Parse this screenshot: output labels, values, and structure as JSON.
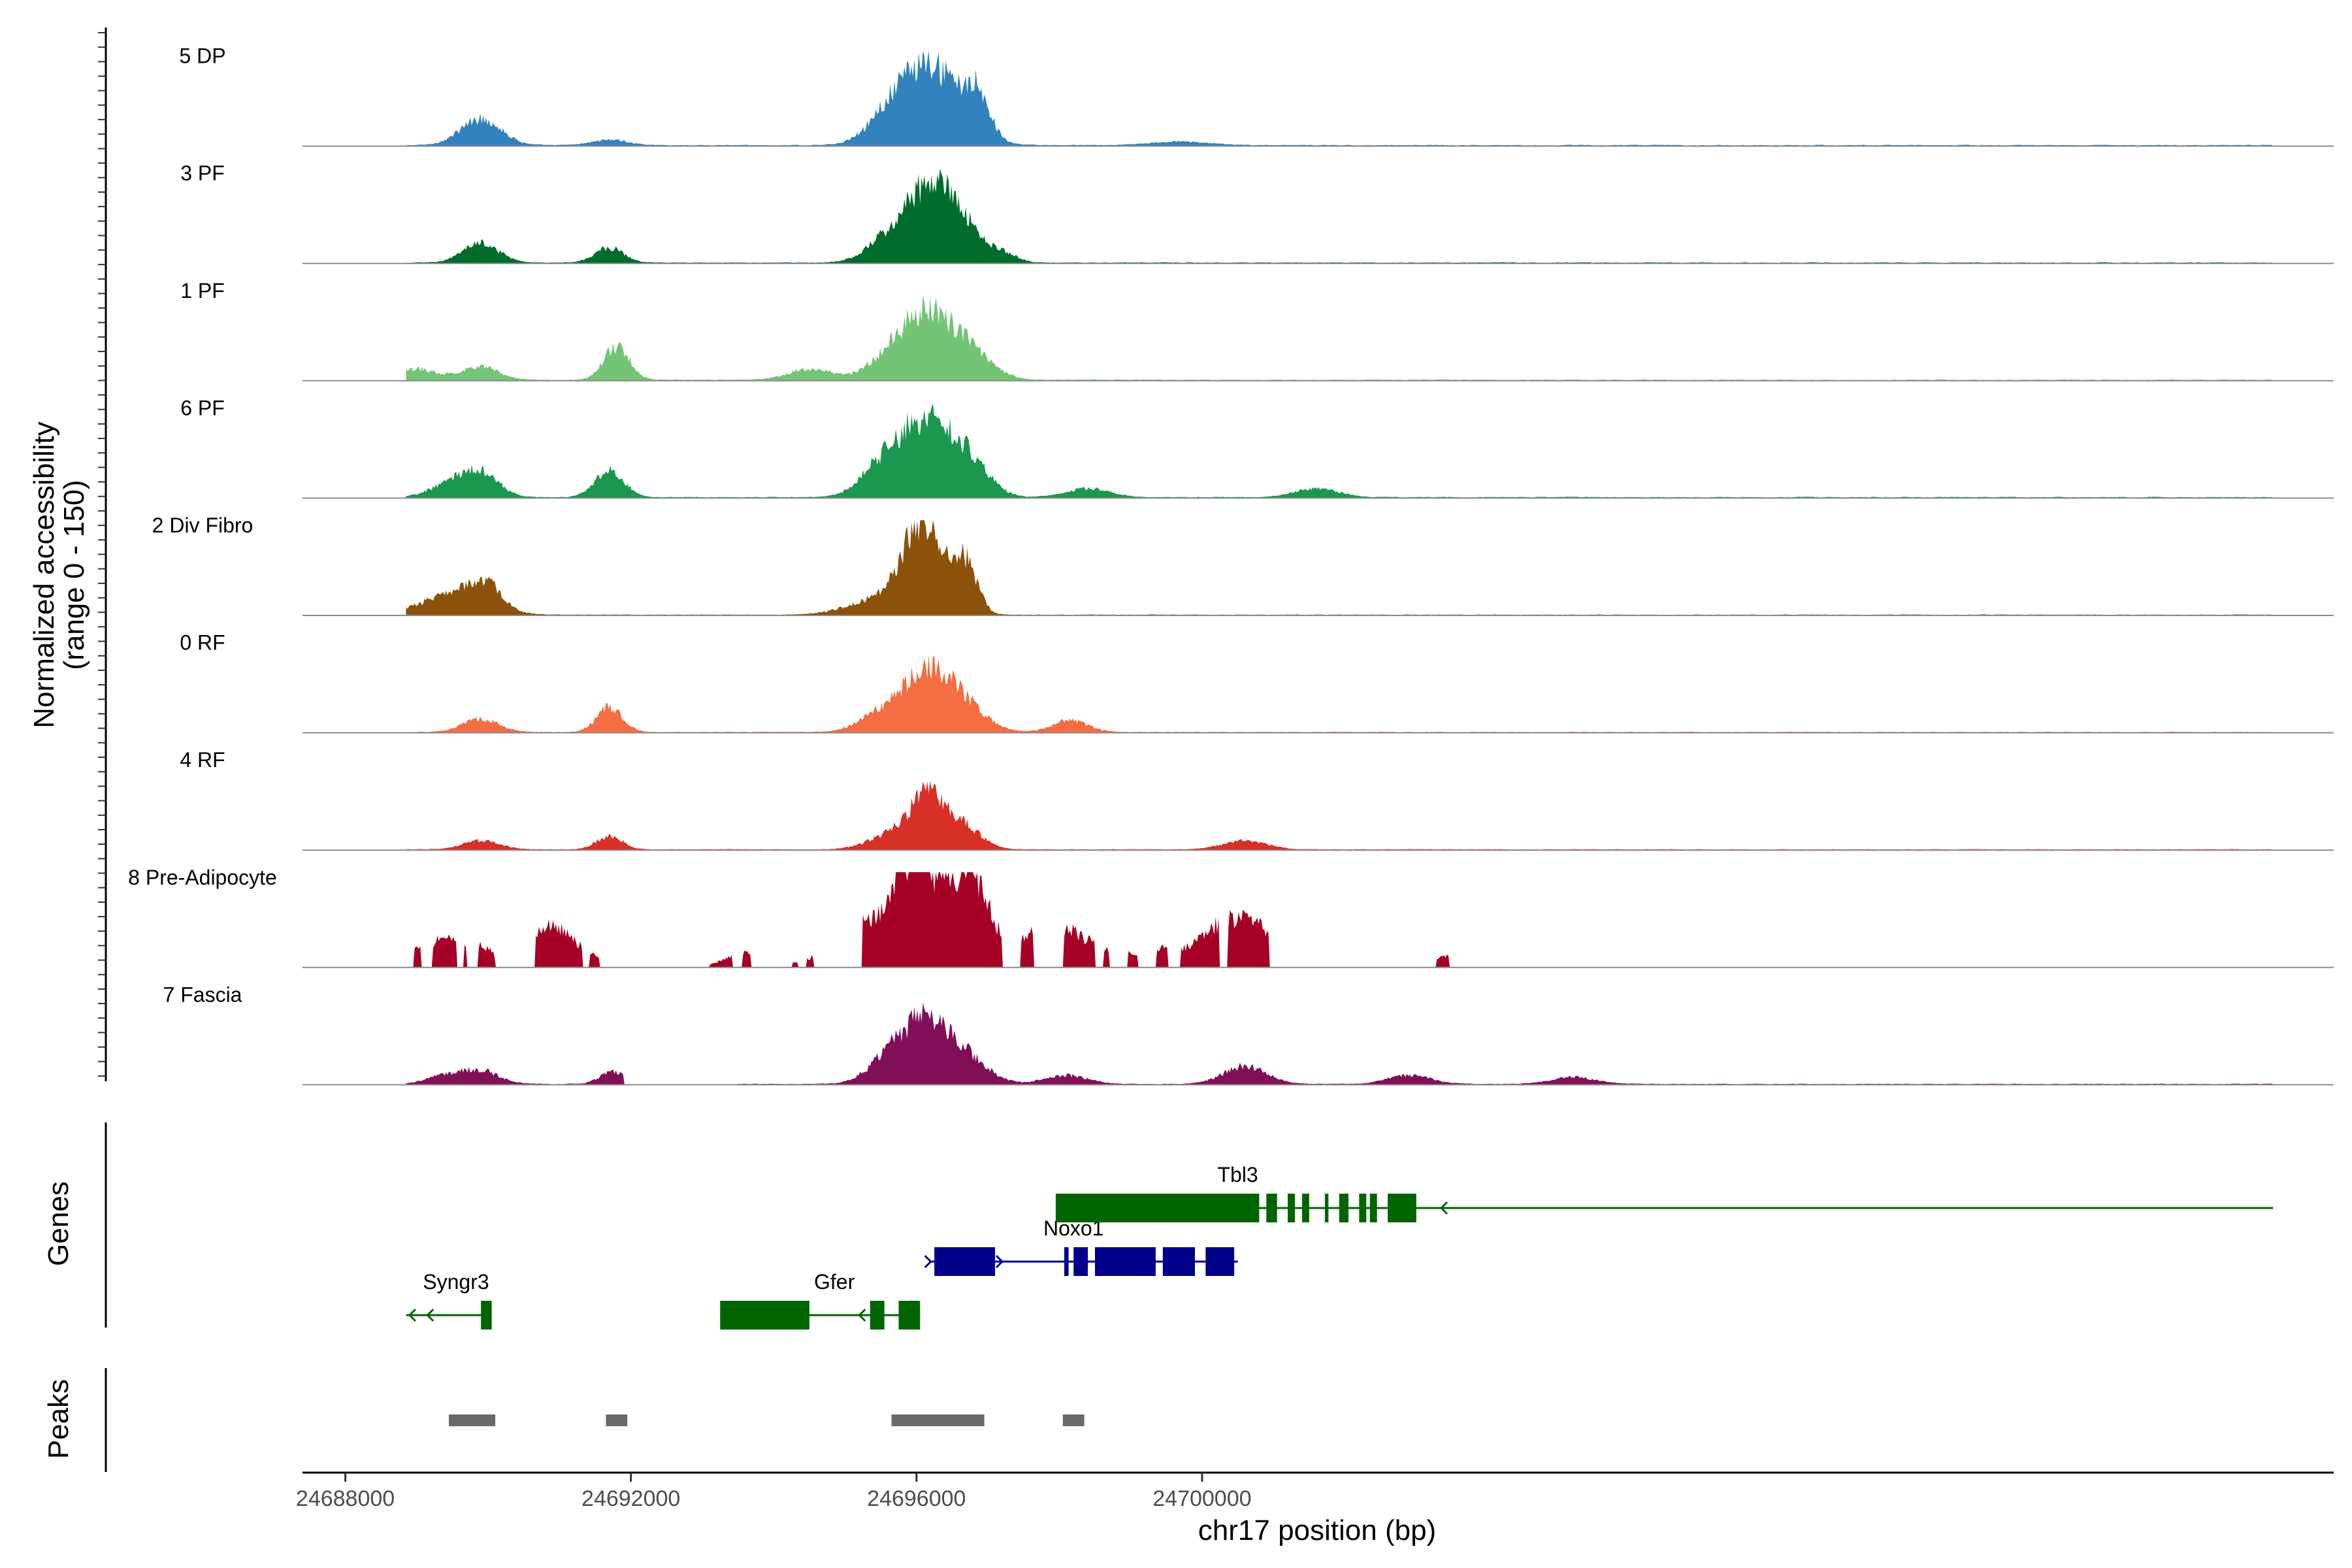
{
  "chart_data": {
    "type": "area",
    "title": "",
    "chromosome": "chr17",
    "xlabel": "chr17 position (bp)",
    "xlim": [
      24687400,
      24715850
    ],
    "xticks": [
      24688000,
      24692000,
      24696000,
      24700000
    ],
    "xtick_labels": [
      "24688000",
      "24692000",
      "24696000",
      "24700000"
    ],
    "ylabel_line1": "Normalized accessibility",
    "ylabel_line2": "(range 0 - 150)",
    "ylim": [
      0,
      150
    ],
    "track_start": 24688850,
    "track_end": 24715000,
    "series": [
      {
        "name": "5 DP",
        "color": "#3182BD",
        "amp": 1.0,
        "noise": 0.1,
        "peaks": [
          [
            24689900,
            280,
            0.3
          ],
          [
            24691700,
            250,
            0.06
          ],
          [
            24695600,
            300,
            0.22
          ],
          [
            24696200,
            420,
            0.88
          ],
          [
            24696850,
            170,
            0.45
          ],
          [
            24699700,
            400,
            0.04
          ]
        ],
        "gaps": []
      },
      {
        "name": "3 PF",
        "color": "#006D2C",
        "amp": 1.0,
        "noise": 0.09,
        "peaks": [
          [
            24689900,
            250,
            0.22
          ],
          [
            24691700,
            200,
            0.17
          ],
          [
            24695600,
            300,
            0.25
          ],
          [
            24696200,
            320,
            0.85
          ],
          [
            24696700,
            250,
            0.3
          ],
          [
            24697200,
            200,
            0.1
          ]
        ],
        "gaps": []
      },
      {
        "name": "1 PF",
        "color": "#74C476",
        "amp": 1.0,
        "noise": 0.1,
        "peaks": [
          [
            24689000,
            300,
            0.12
          ],
          [
            24689900,
            250,
            0.15
          ],
          [
            24691800,
            180,
            0.38
          ],
          [
            24694500,
            300,
            0.12
          ],
          [
            24695700,
            350,
            0.25
          ],
          [
            24696200,
            350,
            0.68
          ],
          [
            24696800,
            300,
            0.25
          ]
        ],
        "gaps": []
      },
      {
        "name": "6 PF",
        "color": "#1A9850",
        "amp": 1.0,
        "noise": 0.1,
        "peaks": [
          [
            24689500,
            300,
            0.15
          ],
          [
            24689900,
            250,
            0.25
          ],
          [
            24691700,
            200,
            0.3
          ],
          [
            24695500,
            300,
            0.3
          ],
          [
            24696100,
            350,
            0.8
          ],
          [
            24696700,
            300,
            0.4
          ],
          [
            24698400,
            300,
            0.1
          ],
          [
            24701600,
            300,
            0.1
          ]
        ],
        "gaps": []
      },
      {
        "name": "2 Div Fibro",
        "color": "#8C510A",
        "amp": 1.0,
        "noise": 0.08,
        "peaks": [
          [
            24689500,
            450,
            0.22
          ],
          [
            24689950,
            220,
            0.28
          ],
          [
            24696100,
            300,
            1.0
          ],
          [
            24696700,
            160,
            0.52
          ],
          [
            24695400,
            400,
            0.15
          ]
        ],
        "gaps": []
      },
      {
        "name": "0 RF",
        "color": "#F46D43",
        "amp": 1.0,
        "noise": 0.08,
        "peaks": [
          [
            24689900,
            250,
            0.15
          ],
          [
            24691700,
            180,
            0.28
          ],
          [
            24695500,
            300,
            0.2
          ],
          [
            24696150,
            320,
            0.7
          ],
          [
            24696700,
            300,
            0.25
          ],
          [
            24698150,
            250,
            0.13
          ]
        ],
        "gaps": []
      },
      {
        "name": "4 RF",
        "color": "#D73027",
        "amp": 1.0,
        "noise": 0.08,
        "peaks": [
          [
            24689900,
            250,
            0.1
          ],
          [
            24691700,
            180,
            0.15
          ],
          [
            24695600,
            300,
            0.15
          ],
          [
            24696150,
            250,
            0.6
          ],
          [
            24696650,
            250,
            0.25
          ],
          [
            24700600,
            300,
            0.1
          ]
        ],
        "gaps": []
      },
      {
        "name": "8 Pre-Adipocyte",
        "color": "#A50026",
        "amp": 1.0,
        "noise": 0.0,
        "peaks": [
          [
            24689000,
            150,
            0.18
          ],
          [
            24689400,
            180,
            0.35
          ],
          [
            24689750,
            120,
            0.15
          ],
          [
            24689950,
            150,
            0.2
          ],
          [
            24690800,
            250,
            0.38
          ],
          [
            24691200,
            300,
            0.2
          ],
          [
            24693500,
            250,
            0.1
          ],
          [
            24693800,
            300,
            0.1
          ],
          [
            24695000,
            300,
            0.38
          ],
          [
            24695400,
            300,
            0.3
          ],
          [
            24695800,
            200,
            0.55
          ],
          [
            24696150,
            280,
            1.05
          ],
          [
            24696750,
            200,
            0.85
          ],
          [
            24697000,
            300,
            0.25
          ],
          [
            24697500,
            300,
            0.18
          ],
          [
            24698100,
            400,
            0.4
          ],
          [
            24699000,
            300,
            0.12
          ],
          [
            24699500,
            200,
            0.15
          ],
          [
            24700300,
            350,
            0.5
          ],
          [
            24700750,
            200,
            0.35
          ],
          [
            24703450,
            250,
            0.12
          ]
        ],
        "gaps": [
          [
            24688850,
            24688950
          ],
          [
            24689060,
            24689220
          ],
          [
            24689560,
            24689650
          ],
          [
            24689700,
            24689850
          ],
          [
            24690100,
            24690650
          ],
          [
            24691330,
            24691410
          ],
          [
            24691560,
            24693100
          ],
          [
            24693420,
            24693560
          ],
          [
            24693680,
            24694250
          ],
          [
            24694350,
            24694450
          ],
          [
            24694570,
            24694950
          ],
          [
            24694950,
            24695230
          ],
          [
            24697200,
            24697450
          ],
          [
            24697650,
            24698050
          ],
          [
            24698500,
            24698620
          ],
          [
            24698700,
            24698950
          ],
          [
            24699100,
            24699350
          ],
          [
            24699520,
            24699700
          ],
          [
            24700250,
            24700350
          ],
          [
            24700950,
            24703280
          ],
          [
            24703470,
            24715000
          ]
        ]
      },
      {
        "name": "7 Fascia",
        "color": "#810F57",
        "amp": 1.0,
        "noise": 0.09,
        "peaks": [
          [
            24689400,
            250,
            0.1
          ],
          [
            24689900,
            250,
            0.15
          ],
          [
            24691750,
            180,
            0.14
          ],
          [
            24695600,
            300,
            0.22
          ],
          [
            24696150,
            350,
            0.7
          ],
          [
            24696750,
            300,
            0.2
          ],
          [
            24698100,
            300,
            0.1
          ],
          [
            24700600,
            300,
            0.2
          ],
          [
            24702900,
            300,
            0.1
          ],
          [
            24705200,
            300,
            0.08
          ]
        ],
        "gaps": [
          [
            24691900,
            24693500
          ]
        ]
      }
    ],
    "genes_track_label": "Genes",
    "genes": [
      {
        "name": "Syngr3",
        "strand": "-",
        "color": "#006400",
        "start": 24688850,
        "end": 24690050,
        "row": 3,
        "exons": [
          [
            24689900,
            24690050
          ]
        ],
        "arrows": [
          24688900,
          24689150
        ],
        "label_x": 24689550,
        "label_row": 2
      },
      {
        "name": "Gfer",
        "strand": "-",
        "color": "#006400",
        "start": 24693250,
        "end": 24696050,
        "row": 3,
        "exons": [
          [
            24693250,
            24694500
          ],
          [
            24695350,
            24695550
          ],
          [
            24695750,
            24696050
          ]
        ],
        "arrows": [
          24695200
        ],
        "label_x": 24694850,
        "label_row": 2
      },
      {
        "name": "Noxo1",
        "strand": "+",
        "color": "#00008B",
        "start": 24696200,
        "end": 24700500,
        "row": 2,
        "exons": [
          [
            24696250,
            24697100
          ],
          [
            24698070,
            24698130
          ],
          [
            24698200,
            24698400
          ],
          [
            24698500,
            24699350
          ],
          [
            24699450,
            24699900
          ],
          [
            24700050,
            24700450
          ]
        ],
        "arrows": [
          24696200,
          24697200
        ],
        "label_x": 24698200,
        "label_row": 1
      },
      {
        "name": "Tbl3",
        "strand": "-",
        "color": "#006400",
        "start": 24697950,
        "end": 24715000,
        "row": 0,
        "exons": [
          [
            24697950,
            24700800
          ],
          [
            24700900,
            24701050
          ],
          [
            24701200,
            24701300
          ],
          [
            24701400,
            24701500
          ],
          [
            24701720,
            24701770
          ],
          [
            24701920,
            24702050
          ],
          [
            24702200,
            24702300
          ],
          [
            24702350,
            24702450
          ],
          [
            24702600,
            24703000
          ]
        ],
        "arrows": [
          24703350
        ],
        "label_x": 24700500,
        "label_row": -1
      }
    ],
    "peaks_track_label": "Peaks",
    "peaks_color": "#696969",
    "peaks": [
      [
        24689450,
        24690100
      ],
      [
        24691650,
        24691950
      ],
      [
        24695650,
        24696950
      ],
      [
        24698050,
        24698350
      ]
    ]
  }
}
